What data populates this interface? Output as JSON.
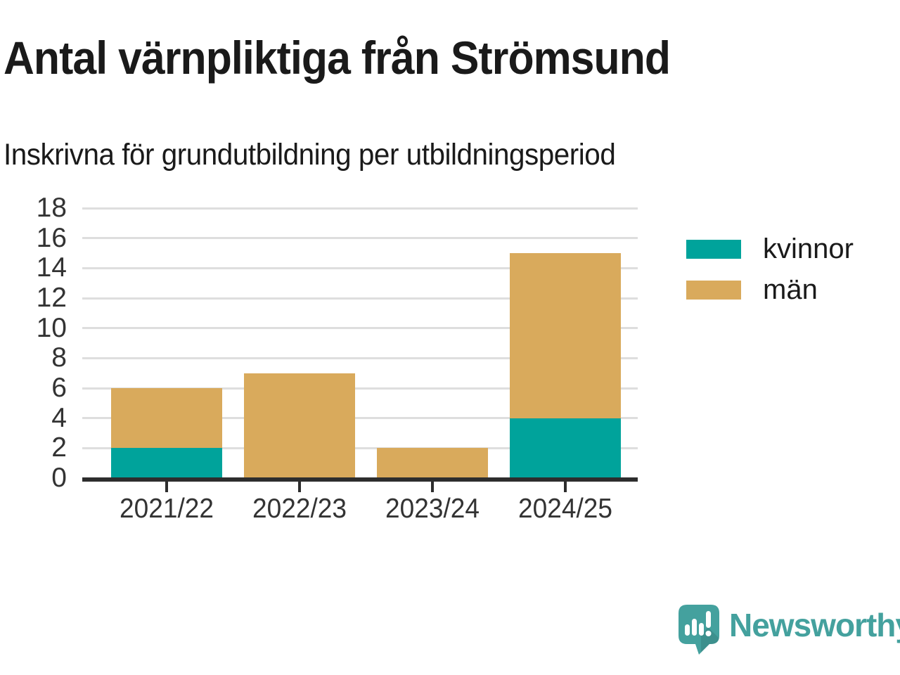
{
  "header": {
    "title": "Antal värnpliktiga från Strömsund",
    "subtitle": "Inskrivna för grundutbildning per utbildningsperiod"
  },
  "chart_data": {
    "type": "bar",
    "stacked": true,
    "title": "Antal värnpliktiga från Strömsund",
    "subtitle": "Inskrivna för grundutbildning per utbildningsperiod",
    "categories": [
      "2021/22",
      "2022/23",
      "2023/24",
      "2024/25"
    ],
    "series": [
      {
        "name": "kvinnor",
        "color": "#00a39b",
        "values": [
          2,
          0,
          0,
          4
        ]
      },
      {
        "name": "män",
        "color": "#d9aa5c",
        "values": [
          4,
          7,
          2,
          11
        ]
      }
    ],
    "totals": [
      6,
      7,
      2,
      15
    ],
    "xlabel": "",
    "ylabel": "",
    "ylim": [
      0,
      18
    ],
    "ytick_step": 2,
    "grid": true,
    "legend_position": "right"
  },
  "colors": {
    "kvinnor": "#00a39b",
    "man": "#d9aa5c",
    "gridline": "#dedede",
    "axis": "#2d2d2d",
    "tick_text": "#333333",
    "title_text": "#1a1a1a",
    "brand_teal": "#44a19e"
  },
  "branding": {
    "logo_text": "Newsworthy",
    "logo_icon": "newsworthy-speech-bubble-bar-chart-icon"
  }
}
